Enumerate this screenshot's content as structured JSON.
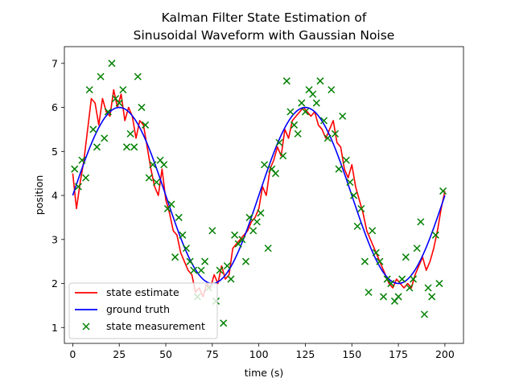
{
  "chart_data": {
    "type": "line",
    "title": [
      "Kalman Filter State Estimation of",
      "Sinusoidal Waveform with Gaussian Noise"
    ],
    "xlabel": "time (s)",
    "ylabel": "position",
    "xlim": [
      -4.5,
      210
    ],
    "ylim": [
      0.64,
      7.38
    ],
    "xticks": [
      0,
      25,
      50,
      75,
      100,
      125,
      150,
      175,
      200
    ],
    "yticks": [
      1,
      2,
      3,
      4,
      5,
      6,
      7
    ],
    "legend_position": "lower-left",
    "grid": false,
    "series": [
      {
        "name": "state estimate",
        "kind": "line",
        "color": "#ff0000",
        "x": [
          0,
          2,
          4,
          6,
          8,
          10,
          12,
          14,
          16,
          18,
          20,
          22,
          24,
          26,
          28,
          30,
          32,
          34,
          36,
          38,
          40,
          42,
          44,
          46,
          48,
          50,
          52,
          54,
          56,
          58,
          60,
          62,
          64,
          66,
          68,
          70,
          72,
          74,
          76,
          78,
          80,
          82,
          84,
          86,
          88,
          90,
          92,
          94,
          96,
          98,
          100,
          102,
          104,
          106,
          108,
          110,
          112,
          114,
          116,
          118,
          120,
          122,
          124,
          126,
          128,
          130,
          132,
          134,
          136,
          138,
          140,
          142,
          144,
          146,
          148,
          150,
          152,
          154,
          156,
          158,
          160,
          162,
          164,
          166,
          168,
          170,
          172,
          174,
          176,
          178,
          180,
          182,
          184,
          186,
          188,
          190,
          192,
          194,
          196,
          198,
          200
        ],
        "y": [
          4.5,
          3.7,
          4.3,
          4.8,
          5.5,
          6.2,
          6.1,
          5.6,
          6.2,
          5.9,
          5.8,
          6.4,
          6.0,
          6.3,
          5.7,
          6.0,
          5.8,
          5.3,
          5.7,
          5.6,
          5.1,
          4.6,
          4.2,
          4.0,
          4.6,
          3.9,
          3.6,
          3.2,
          3.1,
          2.7,
          2.5,
          2.3,
          2.2,
          1.8,
          1.9,
          1.7,
          2.0,
          1.9,
          2.2,
          2.0,
          2.4,
          2.1,
          2.2,
          2.8,
          2.9,
          3.0,
          3.1,
          3.2,
          3.4,
          3.5,
          3.7,
          4.2,
          4.0,
          4.6,
          4.8,
          5.1,
          4.9,
          5.5,
          5.3,
          5.7,
          5.8,
          5.9,
          6.0,
          5.9,
          5.8,
          5.9,
          5.6,
          5.5,
          5.3,
          5.5,
          5.7,
          5.2,
          5.1,
          4.6,
          4.4,
          4.7,
          4.2,
          3.9,
          3.6,
          3.2,
          3.0,
          2.8,
          2.6,
          2.4,
          2.2,
          2.0,
          1.9,
          2.1,
          2.0,
          1.9,
          2.0,
          1.9,
          2.2,
          2.4,
          2.6,
          2.3,
          2.5,
          2.8,
          3.2,
          3.7,
          4.1
        ]
      },
      {
        "name": "ground truth",
        "kind": "line",
        "color": "#0000ff",
        "function": "4 + 2*sin(2*pi*t/100)",
        "t_start": 0,
        "t_end": 200
      },
      {
        "name": "state measurement",
        "kind": "scatter",
        "marker": "x",
        "color": "#008000",
        "x": [
          1,
          3,
          5,
          7,
          9,
          11,
          13,
          15,
          17,
          19,
          21,
          23,
          25,
          27,
          29,
          31,
          33,
          35,
          37,
          39,
          41,
          43,
          45,
          47,
          49,
          51,
          53,
          55,
          57,
          59,
          61,
          63,
          65,
          67,
          69,
          71,
          73,
          75,
          77,
          79,
          81,
          83,
          85,
          87,
          89,
          91,
          93,
          95,
          97,
          99,
          101,
          103,
          105,
          107,
          109,
          111,
          113,
          115,
          117,
          119,
          121,
          123,
          125,
          127,
          129,
          131,
          133,
          135,
          137,
          139,
          141,
          143,
          145,
          147,
          149,
          151,
          153,
          155,
          157,
          159,
          161,
          163,
          165,
          167,
          169,
          171,
          173,
          175,
          177,
          179,
          181,
          183,
          185,
          187,
          189,
          191,
          193,
          195,
          197,
          199
        ],
        "y": [
          4.6,
          4.2,
          4.8,
          4.4,
          6.4,
          5.5,
          5.1,
          6.7,
          5.3,
          5.9,
          7.0,
          6.2,
          6.1,
          6.4,
          5.1,
          5.4,
          5.1,
          6.7,
          6.0,
          5.6,
          4.4,
          4.7,
          4.3,
          4.8,
          4.7,
          3.7,
          3.8,
          2.6,
          3.5,
          3.1,
          2.8,
          2.5,
          2.3,
          1.7,
          2.3,
          2.5,
          1.9,
          3.2,
          1.6,
          2.3,
          1.1,
          2.4,
          2.1,
          3.1,
          2.9,
          3.0,
          2.5,
          3.5,
          3.2,
          3.4,
          3.6,
          4.7,
          2.8,
          4.6,
          4.5,
          5.2,
          4.9,
          6.6,
          5.9,
          5.6,
          5.4,
          6.1,
          5.9,
          6.4,
          6.3,
          6.1,
          6.6,
          5.7,
          5.3,
          6.4,
          5.4,
          4.6,
          5.8,
          4.8,
          4.3,
          4.0,
          3.3,
          3.7,
          2.5,
          1.8,
          3.2,
          2.7,
          2.5,
          1.7,
          2.1,
          2.0,
          1.6,
          1.7,
          2.1,
          2.6,
          1.9,
          2.1,
          2.8,
          3.4,
          1.3,
          1.9,
          1.7,
          3.1,
          2.0,
          4.1
        ]
      }
    ]
  }
}
